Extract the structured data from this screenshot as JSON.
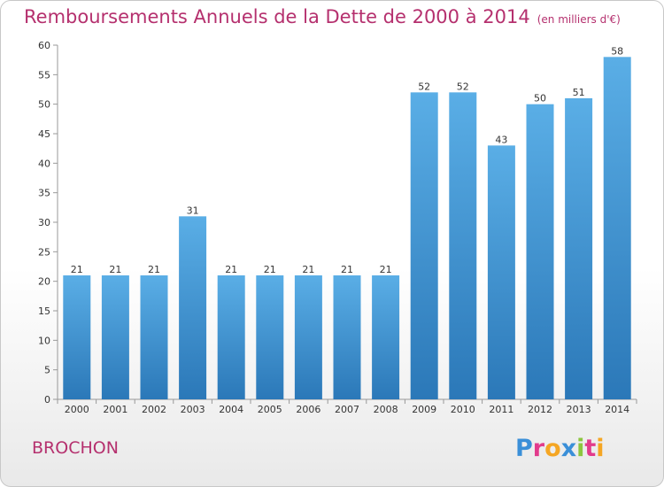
{
  "header": {
    "title": "Remboursements Annuels de la Dette de 2000 à 2014",
    "units": "(en milliers d'€)"
  },
  "commune": "BROCHON",
  "logo": {
    "text": "Proxiti",
    "letters": [
      {
        "char": "P",
        "color": "#3a8fd8"
      },
      {
        "char": "r",
        "color": "#e23b8c"
      },
      {
        "char": "o",
        "color": "#f5a623"
      },
      {
        "char": "x",
        "color": "#3a8fd8"
      },
      {
        "char": "i",
        "color": "#8cc63f"
      },
      {
        "char": "t",
        "color": "#e23b8c"
      },
      {
        "char": "i",
        "color": "#f5a623"
      }
    ]
  },
  "colors": {
    "title": "#b5306e",
    "bar_top": "#5aaee6",
    "bar_bottom": "#2b78b8",
    "grid": "#aaaaaa"
  },
  "chart_data": {
    "type": "bar",
    "title": "Remboursements Annuels de la Dette de 2000 à 2014",
    "xlabel": "",
    "ylabel": "",
    "categories": [
      "2000",
      "2001",
      "2002",
      "2003",
      "2004",
      "2005",
      "2006",
      "2007",
      "2008",
      "2009",
      "2010",
      "2011",
      "2012",
      "2013",
      "2014"
    ],
    "values": [
      21,
      21,
      21,
      31,
      21,
      21,
      21,
      21,
      21,
      52,
      52,
      43,
      50,
      51,
      58
    ],
    "ylim": [
      0,
      60
    ],
    "yticks": [
      0,
      5,
      10,
      15,
      20,
      25,
      30,
      35,
      40,
      45,
      50,
      55,
      60
    ],
    "grid": false,
    "legend": "none"
  }
}
